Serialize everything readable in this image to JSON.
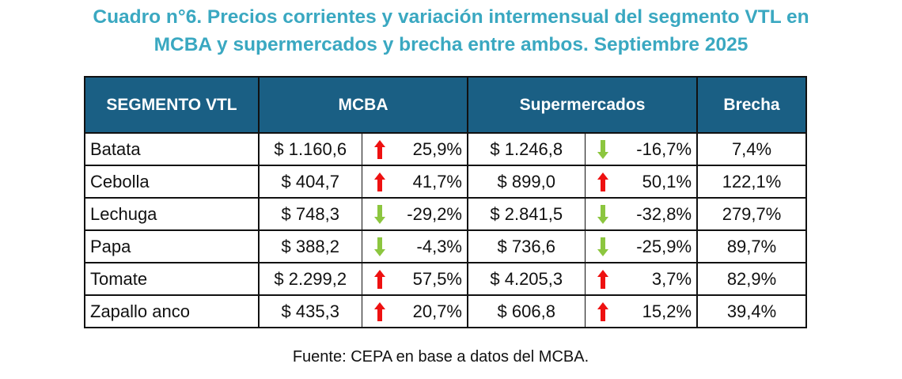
{
  "title": {
    "line1": "Cuadro n°6.  Precios corrientes y variación intermensual del segmento VTL en",
    "line2": "MCBA y supermercados y brecha entre ambos. Septiembre 2025"
  },
  "table": {
    "headers": {
      "segment": "SEGMENTO VTL",
      "mcba": "MCBA",
      "super": "Supermercados",
      "brecha": "Brecha"
    },
    "rows": [
      {
        "name": "Batata",
        "mcba_price": "$ 1.160,6",
        "mcba_dir": "up",
        "mcba_var": "25,9%",
        "super_price": "$ 1.246,8",
        "super_dir": "down",
        "super_var": "-16,7%",
        "brecha": "7,4%"
      },
      {
        "name": "Cebolla",
        "mcba_price": "$ 404,7",
        "mcba_dir": "up",
        "mcba_var": "41,7%",
        "super_price": "$ 899,0",
        "super_dir": "up",
        "super_var": "50,1%",
        "brecha": "122,1%"
      },
      {
        "name": "Lechuga",
        "mcba_price": "$ 748,3",
        "mcba_dir": "down",
        "mcba_var": "-29,2%",
        "super_price": "$ 2.841,5",
        "super_dir": "down",
        "super_var": "-32,8%",
        "brecha": "279,7%"
      },
      {
        "name": "Papa",
        "mcba_price": "$ 388,2",
        "mcba_dir": "down",
        "mcba_var": "-4,3%",
        "super_price": "$ 736,6",
        "super_dir": "down",
        "super_var": "-25,9%",
        "brecha": "89,7%"
      },
      {
        "name": "Tomate",
        "mcba_price": "$ 2.299,2",
        "mcba_dir": "up",
        "mcba_var": "57,5%",
        "super_price": "$ 4.205,3",
        "super_dir": "up",
        "super_var": "3,7%",
        "brecha": "82,9%"
      },
      {
        "name": "Zapallo anco",
        "mcba_price": "$ 435,3",
        "mcba_dir": "up",
        "mcba_var": "20,7%",
        "super_price": "$ 606,8",
        "super_dir": "up",
        "super_var": "15,2%",
        "brecha": "39,4%"
      }
    ]
  },
  "icons": {
    "up": "red-up-arrow-icon",
    "down": "green-down-arrow-icon"
  },
  "colors": {
    "title": "#3aa8c1",
    "header_bg": "#1a5f84",
    "up_arrow": "#ee1111",
    "down_arrow": "#8cc63f"
  },
  "source": "Fuente: CEPA en base a datos del MCBA."
}
